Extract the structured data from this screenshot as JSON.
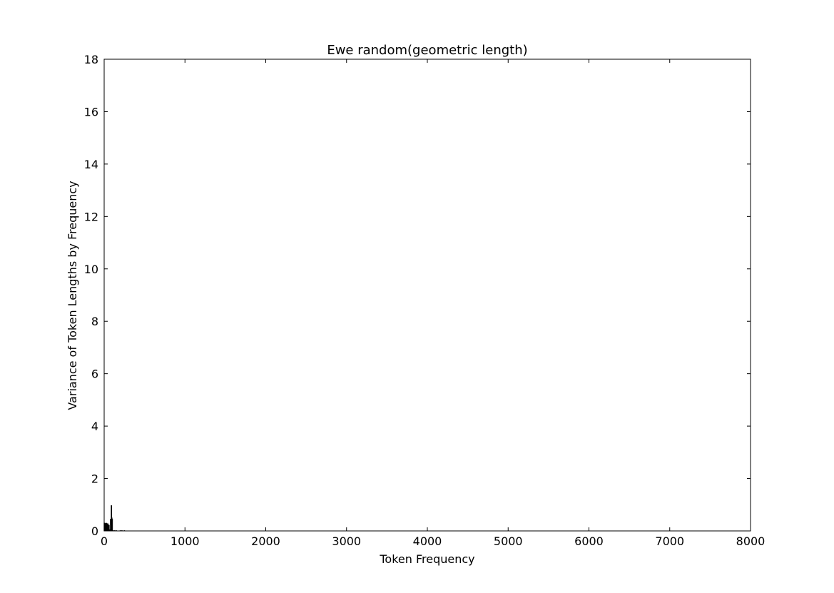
{
  "chart_data": {
    "type": "bar",
    "title": "Ewe random(geometric length)",
    "xlabel": "Token Frequency",
    "ylabel": "Variance of Token Lengths by Frequency",
    "xlim": [
      0,
      8000
    ],
    "ylim": [
      0,
      18
    ],
    "xticks": [
      0,
      1000,
      2000,
      3000,
      4000,
      5000,
      6000,
      7000,
      8000
    ],
    "yticks": [
      0,
      2,
      4,
      6,
      8,
      10,
      12,
      14,
      16,
      18
    ],
    "grid": false,
    "bar_color": "#000000",
    "x": [
      2,
      5,
      8,
      12,
      15,
      18,
      22,
      25,
      30,
      35,
      40,
      45,
      50,
      55,
      60,
      70,
      80,
      90,
      95,
      100,
      110,
      130,
      150,
      200,
      220,
      250
    ],
    "values": [
      0.3,
      0.2,
      0.25,
      0.3,
      0.25,
      0.2,
      0.28,
      0.22,
      0.3,
      0.25,
      0.2,
      0.28,
      0.24,
      0.2,
      0.22,
      0.05,
      0.45,
      0.97,
      0.5,
      0.45,
      0.02,
      0.01,
      0.01,
      0.005,
      0.01,
      0.005
    ]
  }
}
